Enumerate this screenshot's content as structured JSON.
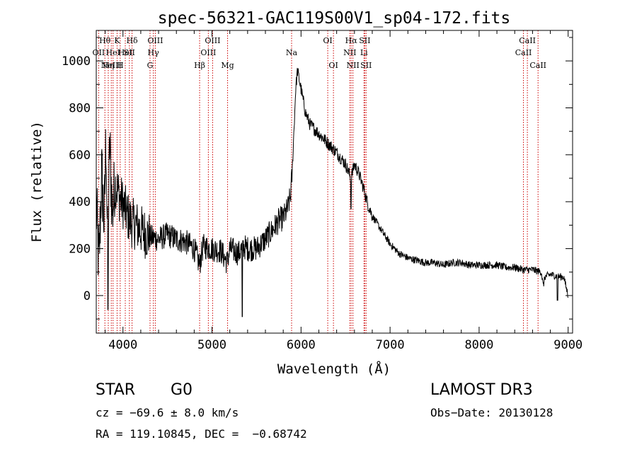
{
  "chart_data": {
    "type": "line",
    "title": "spec-56321-GAC119S00V1_sp04-172.fits",
    "xlabel": "Wavelength (Å)",
    "ylabel": "Flux (relative)",
    "xlim": [
      3700,
      9050
    ],
    "ylim": [
      -160,
      1130
    ],
    "xticks": [
      4000,
      5000,
      6000,
      7000,
      8000,
      9000
    ],
    "yticks": [
      0,
      200,
      400,
      600,
      800,
      1000
    ],
    "grid": false,
    "series": [
      {
        "name": "flux",
        "color": "#000000",
        "x": [
          3700,
          3730,
          3760,
          3790,
          3810,
          3830,
          3850,
          3880,
          3920,
          3960,
          4000,
          4050,
          4100,
          4150,
          4200,
          4300,
          4400,
          4500,
          4600,
          4700,
          4800,
          4860,
          4900,
          5000,
          5100,
          5170,
          5200,
          5300,
          5350,
          5400,
          5500,
          5600,
          5700,
          5750,
          5800,
          5850,
          5880,
          5900,
          5920,
          5940,
          5960,
          6000,
          6050,
          6100,
          6200,
          6300,
          6400,
          6500,
          6560,
          6600,
          6650,
          6700,
          6750,
          6800,
          6900,
          7000,
          7100,
          7200,
          7300,
          7400,
          7500,
          7600,
          7700,
          7800,
          7900,
          8000,
          8100,
          8200,
          8300,
          8400,
          8500,
          8600,
          8700,
          8720,
          8740,
          8800,
          8900,
          8950,
          9000
        ],
        "y": [
          380,
          120,
          520,
          300,
          700,
          100,
          650,
          360,
          480,
          420,
          390,
          340,
          310,
          300,
          280,
          250,
          240,
          260,
          240,
          230,
          200,
          130,
          210,
          200,
          190,
          140,
          200,
          180,
          210,
          200,
          200,
          240,
          290,
          320,
          330,
          370,
          420,
          520,
          700,
          880,
          960,
          880,
          780,
          730,
          690,
          650,
          610,
          560,
          500,
          560,
          520,
          460,
          390,
          340,
          280,
          220,
          180,
          160,
          150,
          140,
          140,
          130,
          140,
          140,
          130,
          130,
          130,
          130,
          120,
          120,
          110,
          110,
          100,
          40,
          80,
          90,
          80,
          80,
          0
        ],
        "dips": [
          {
            "x": 3830,
            "y": -60
          },
          {
            "x": 5340,
            "y": -90
          },
          {
            "x": 6560,
            "y": 370
          },
          {
            "x": 8880,
            "y": -20
          }
        ]
      }
    ],
    "lines": [
      {
        "x": 3727,
        "label": "OII",
        "row": 1
      },
      {
        "x": 3797,
        "label": "Hθ",
        "row": 0
      },
      {
        "x": 3835,
        "label": "Hη",
        "row": 2
      },
      {
        "x": 3869,
        "label": "NeIII",
        "row": 2
      },
      {
        "x": 3889,
        "label": "HeI",
        "row": 1
      },
      {
        "x": 3934,
        "label": "K",
        "row": 0
      },
      {
        "x": 3969,
        "label": "H",
        "row": 2
      },
      {
        "x": 4026,
        "label": "HeI",
        "row": 1
      },
      {
        "x": 4072,
        "label": "SII",
        "row": 1
      },
      {
        "x": 4102,
        "label": "Hδ",
        "row": 0
      },
      {
        "x": 4304,
        "label": "G",
        "row": 2
      },
      {
        "x": 4341,
        "label": "Hγ",
        "row": 1
      },
      {
        "x": 4363,
        "label": "OIII",
        "row": 0
      },
      {
        "x": 4861,
        "label": "Hβ",
        "row": 2
      },
      {
        "x": 4959,
        "label": "OIII",
        "row": 1
      },
      {
        "x": 5007,
        "label": "OIII",
        "row": 0
      },
      {
        "x": 5175,
        "label": "Mg",
        "row": 2
      },
      {
        "x": 5894,
        "label": "Na",
        "row": 1
      },
      {
        "x": 6300,
        "label": "OI",
        "row": 0
      },
      {
        "x": 6364,
        "label": "OI",
        "row": 2
      },
      {
        "x": 6548,
        "label": "NII",
        "row": 1
      },
      {
        "x": 6563,
        "label": "Hα",
        "row": 0
      },
      {
        "x": 6583,
        "label": "NII",
        "row": 2
      },
      {
        "x": 6707,
        "label": "Li",
        "row": 1
      },
      {
        "x": 6716,
        "label": "SII",
        "row": 0
      },
      {
        "x": 6731,
        "label": "SII",
        "row": 2
      },
      {
        "x": 8498,
        "label": "CaII",
        "row": 1
      },
      {
        "x": 8542,
        "label": "CaII",
        "row": 0
      },
      {
        "x": 8662,
        "label": "CaII",
        "row": 2
      }
    ]
  },
  "info": {
    "class": "STAR",
    "subclass": "G0",
    "survey": "LAMOST DR3",
    "cz": "cz = −69.6 ± 8.0 km/s",
    "obs_date": "Obs−Date: 20130128",
    "coords": "RA = 119.10845, DEC =  −0.68742"
  }
}
